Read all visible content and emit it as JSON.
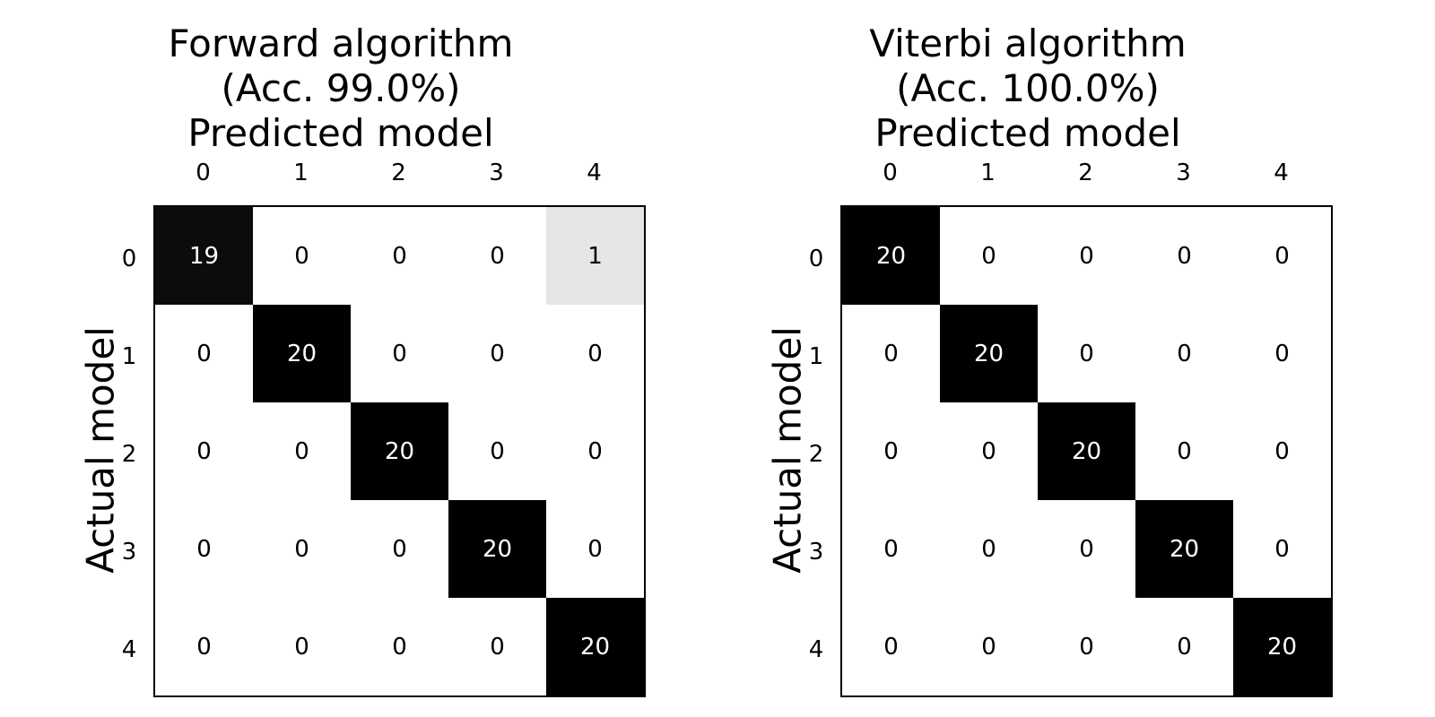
{
  "chart_data": [
    {
      "type": "heatmap",
      "title_lines": [
        "Forward algorithm",
        "(Acc. 99.0%)",
        "Predicted model"
      ],
      "xlabel": "Predicted model",
      "ylabel": "Actual model",
      "x_ticks": [
        "0",
        "1",
        "2",
        "3",
        "4"
      ],
      "y_ticks": [
        "0",
        "1",
        "2",
        "3",
        "4"
      ],
      "colormap": "greys",
      "vmax": 20,
      "matrix": [
        [
          19,
          0,
          0,
          0,
          1
        ],
        [
          0,
          20,
          0,
          0,
          0
        ],
        [
          0,
          0,
          20,
          0,
          0
        ],
        [
          0,
          0,
          0,
          20,
          0
        ],
        [
          0,
          0,
          0,
          0,
          20
        ]
      ]
    },
    {
      "type": "heatmap",
      "title_lines": [
        "Viterbi algorithm",
        "(Acc. 100.0%)",
        "Predicted model"
      ],
      "xlabel": "Predicted model",
      "ylabel": "Actual model",
      "x_ticks": [
        "0",
        "1",
        "2",
        "3",
        "4"
      ],
      "y_ticks": [
        "0",
        "1",
        "2",
        "3",
        "4"
      ],
      "colormap": "greys",
      "vmax": 20,
      "matrix": [
        [
          20,
          0,
          0,
          0,
          0
        ],
        [
          0,
          20,
          0,
          0,
          0
        ],
        [
          0,
          0,
          20,
          0,
          0
        ],
        [
          0,
          0,
          0,
          20,
          0
        ],
        [
          0,
          0,
          0,
          0,
          20
        ]
      ]
    }
  ]
}
